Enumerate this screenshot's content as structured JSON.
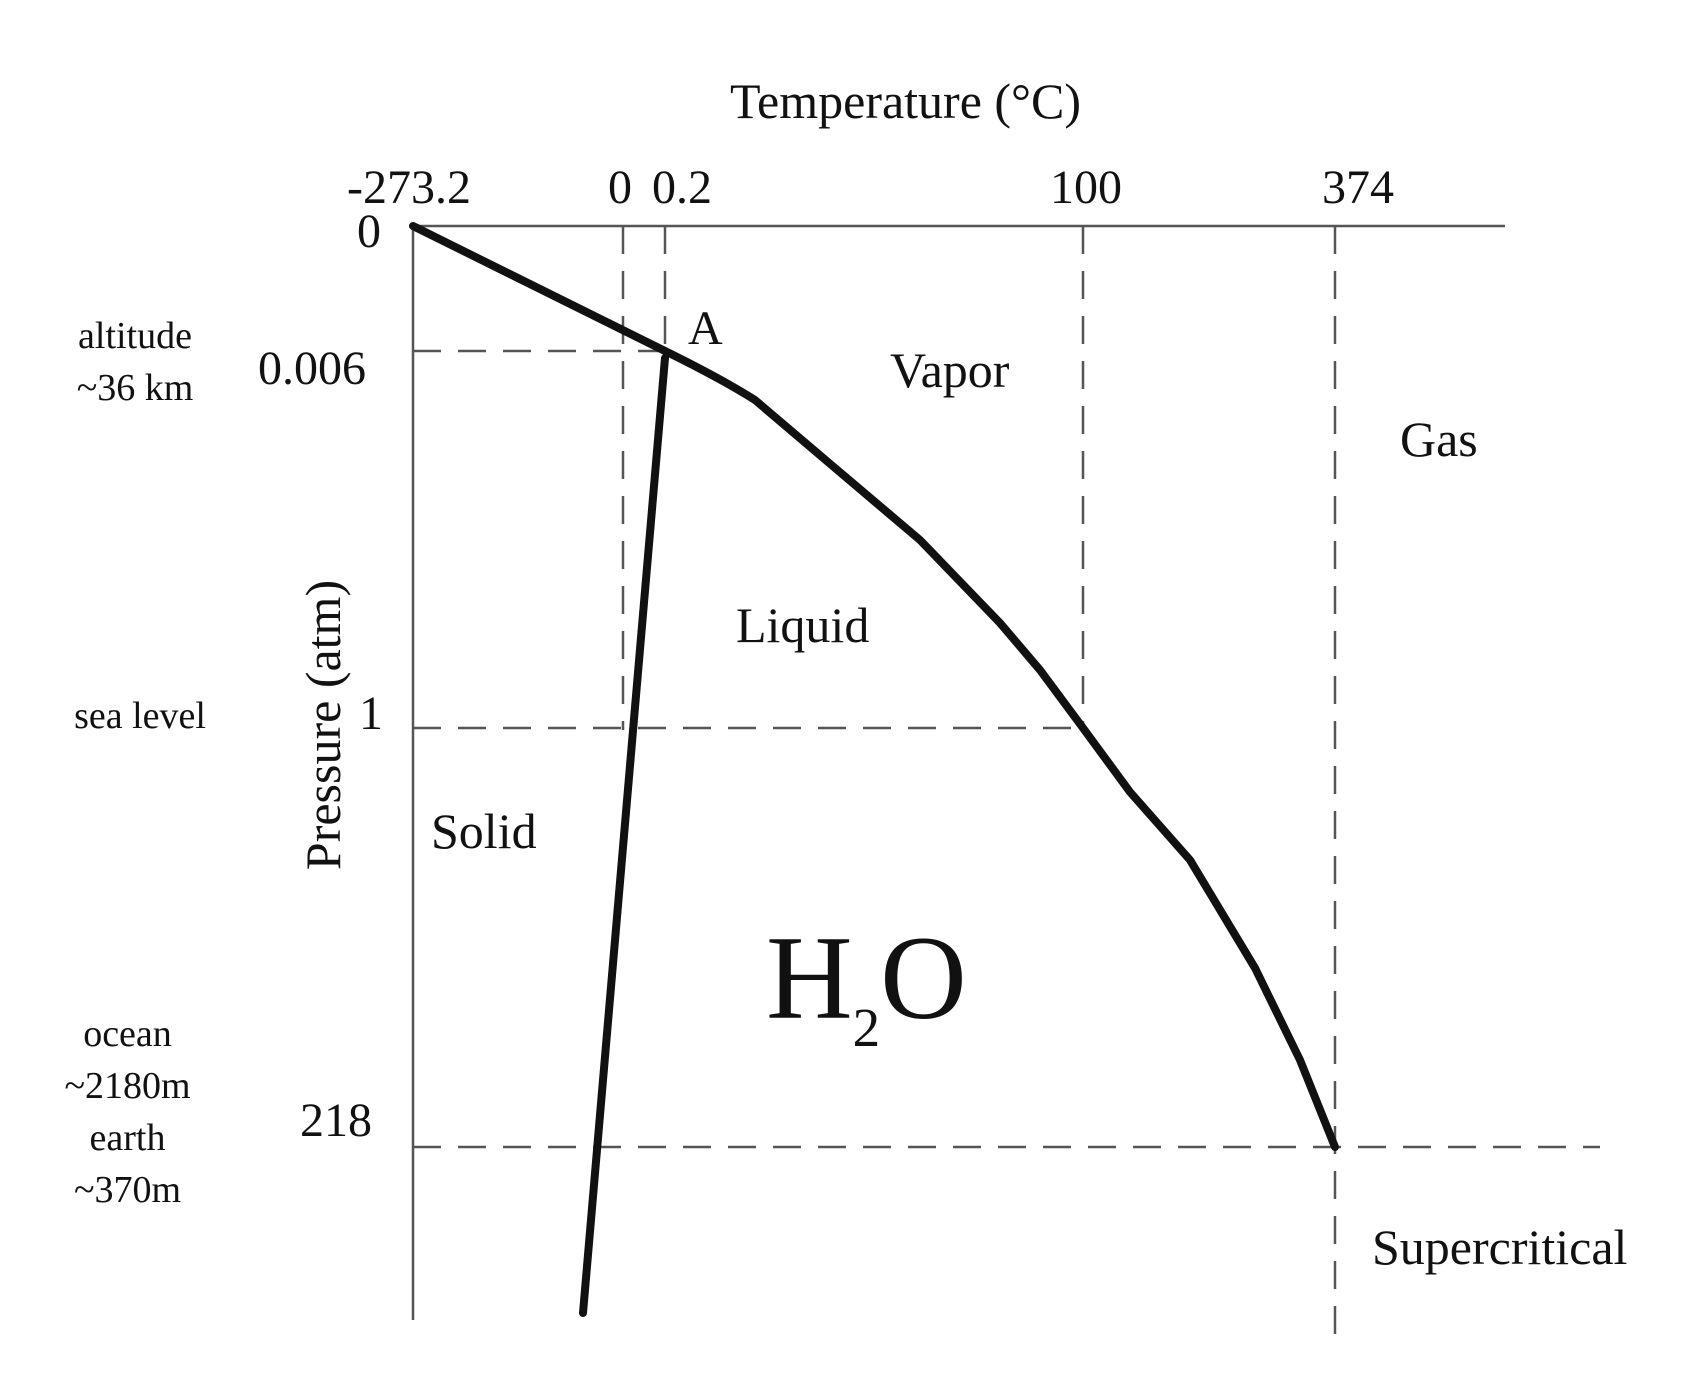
{
  "diagram": {
    "x_axis_title": "Temperature (°C)",
    "y_axis_title": "Pressure (atm)",
    "temperature_ticks": [
      "-273.2",
      "0",
      "0.2",
      "100",
      "374"
    ],
    "pressure_ticks": [
      "0",
      "0.006",
      "1",
      "218"
    ],
    "side_labels": {
      "altitude": [
        "altitude",
        "~36 km"
      ],
      "sea_level": "sea level",
      "depth": [
        "ocean",
        "~2180m",
        "earth",
        "~370m"
      ]
    },
    "triple_point_label": "A",
    "regions": {
      "vapor": "Vapor",
      "gas": "Gas",
      "liquid": "Liquid",
      "solid": "Solid",
      "supercritical": "Supercritical"
    },
    "formula": {
      "main": "H",
      "subscript": "2",
      "tail": "O"
    },
    "colors": {
      "curve": "#111111",
      "axis": "#555555",
      "guide": "#555555"
    }
  }
}
